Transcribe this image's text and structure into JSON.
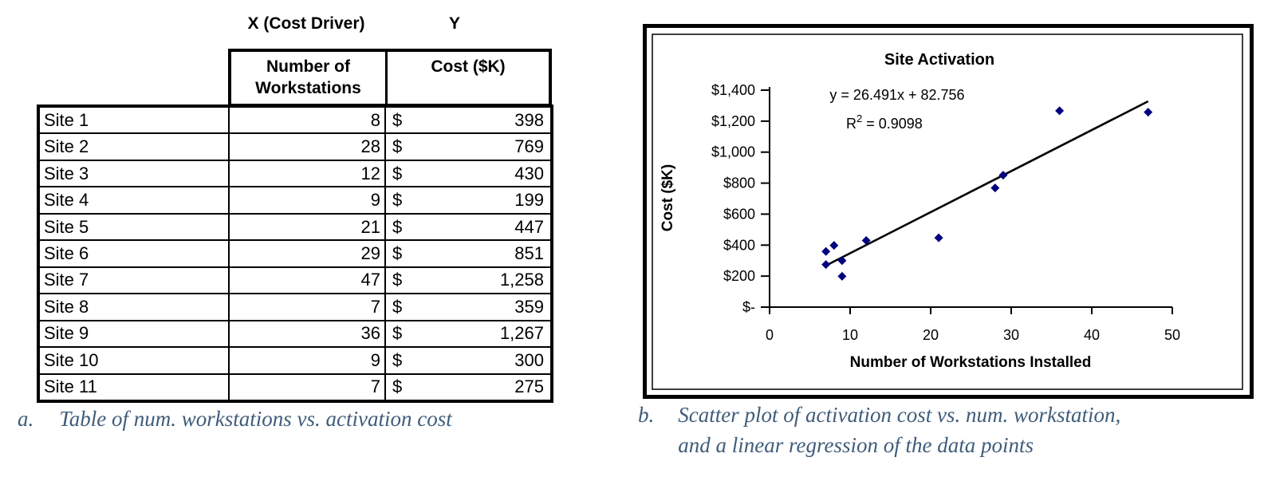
{
  "table": {
    "x_driver_header": "X (Cost Driver)",
    "y_header": "Y",
    "col1_line1": "Number of",
    "col1_line2": "Workstations",
    "col2_header": "Cost ($K)",
    "rows": [
      {
        "site": "Site 1",
        "workstations": "8",
        "currency": "$",
        "cost": "398"
      },
      {
        "site": "Site 2",
        "workstations": "28",
        "currency": "$",
        "cost": "769"
      },
      {
        "site": "Site 3",
        "workstations": "12",
        "currency": "$",
        "cost": "430"
      },
      {
        "site": "Site 4",
        "workstations": "9",
        "currency": "$",
        "cost": "199"
      },
      {
        "site": "Site 5",
        "workstations": "21",
        "currency": "$",
        "cost": "447"
      },
      {
        "site": "Site 6",
        "workstations": "29",
        "currency": "$",
        "cost": "851"
      },
      {
        "site": "Site 7",
        "workstations": "47",
        "currency": "$",
        "cost": "1,258"
      },
      {
        "site": "Site 8",
        "workstations": "7",
        "currency": "$",
        "cost": "359"
      },
      {
        "site": "Site 9",
        "workstations": "36",
        "currency": "$",
        "cost": "1,267"
      },
      {
        "site": "Site 10",
        "workstations": "9",
        "currency": "$",
        "cost": "300"
      },
      {
        "site": "Site 11",
        "workstations": "7",
        "currency": "$",
        "cost": "275"
      }
    ]
  },
  "chart_data": {
    "type": "scatter",
    "title": "Site Activation",
    "xlabel": "Number of Workstations Installed",
    "ylabel": "Cost ($K)",
    "equation": "y = 26.491x + 82.756",
    "r_squared": {
      "base": "R",
      "sup": "2",
      "rest": "= 0.9098"
    },
    "x": [
      8,
      28,
      12,
      9,
      21,
      29,
      47,
      7,
      36,
      9,
      7
    ],
    "y": [
      398,
      769,
      430,
      199,
      447,
      851,
      1258,
      359,
      1267,
      300,
      275
    ],
    "trendline": {
      "slope": 26.491,
      "intercept": 82.756,
      "x_start": 7,
      "x_end": 47
    },
    "x_ticks": {
      "labels": [
        "0",
        "10",
        "20",
        "30",
        "40",
        "50"
      ],
      "values": [
        0,
        10,
        20,
        30,
        40,
        50
      ]
    },
    "y_ticks": {
      "labels": [
        "$1,400",
        "$1,200",
        "$1,000",
        "$800",
        "$600",
        "$400",
        "$200",
        "$-"
      ],
      "values": [
        1400,
        1200,
        1000,
        800,
        600,
        400,
        200,
        0
      ]
    },
    "xlim": [
      0,
      50
    ],
    "ylim": [
      0,
      1400
    ],
    "grid": false,
    "legend": "none",
    "marker_color": "#000080",
    "trendline_color": "#000000"
  },
  "captions": {
    "a": {
      "label": "a.",
      "text": "Table of num. workstations vs. activation cost"
    },
    "b": {
      "label": "b.",
      "line1": "Scatter plot of activation cost vs. num. workstation,",
      "line2": "and a linear regression of the data points"
    },
    "color": "#3f5c7a"
  }
}
